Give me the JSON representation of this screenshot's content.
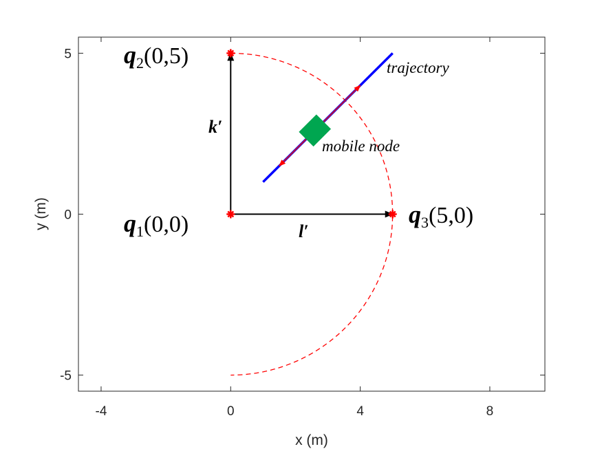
{
  "chart_data": {
    "type": "scatter",
    "xlabel": "x (m)",
    "ylabel": "y (m)",
    "xlim": [
      -4.7,
      9.7
    ],
    "ylim": [
      -5.5,
      5.5
    ],
    "xticks": [
      -4,
      0,
      4,
      8
    ],
    "yticks": [
      -5,
      0,
      5
    ],
    "xtick_labels": [
      "-4",
      "0",
      "4",
      "8"
    ],
    "ytick_labels": [
      "-5",
      "0",
      "5"
    ],
    "grid": false,
    "nodes": [
      {
        "id": "q1",
        "x": 0,
        "y": 0,
        "label_sym": "q",
        "label_sub": "1",
        "label_coords": "(0,0)"
      },
      {
        "id": "q2",
        "x": 0,
        "y": 5,
        "label_sym": "q",
        "label_sub": "2",
        "label_coords": "(0,5)"
      },
      {
        "id": "q3",
        "x": 5,
        "y": 0,
        "label_sym": "q",
        "label_sub": "3",
        "label_coords": "(5,0)"
      }
    ],
    "circle_arc": {
      "center": [
        0,
        0
      ],
      "radius": 5,
      "from_deg": -90,
      "to_deg": 90,
      "style": "dashed",
      "color": "#ff0000"
    },
    "trajectory": {
      "x": [
        1,
        5
      ],
      "y": [
        1,
        5
      ],
      "color": "#0000ff",
      "label": "trajectory"
    },
    "motion_arrows": [
      {
        "from": [
          2.3,
          2.3
        ],
        "to": [
          4.0,
          4.0
        ]
      },
      {
        "from": [
          2.5,
          2.5
        ],
        "to": [
          1.5,
          1.5
        ]
      }
    ],
    "mobile_node": {
      "x": 2.6,
      "y": 2.6,
      "label": "mobile node",
      "color": "#00a650"
    },
    "axis_vectors": [
      {
        "from": [
          0,
          0
        ],
        "to": [
          0,
          5
        ],
        "label": "k′"
      },
      {
        "from": [
          0,
          0
        ],
        "to": [
          5,
          0
        ],
        "label": "l′"
      }
    ]
  },
  "colors": {
    "node": "#ff0000",
    "trajectory": "#0000ff",
    "mobile": "#00a650",
    "arrow": "#c8102e"
  }
}
